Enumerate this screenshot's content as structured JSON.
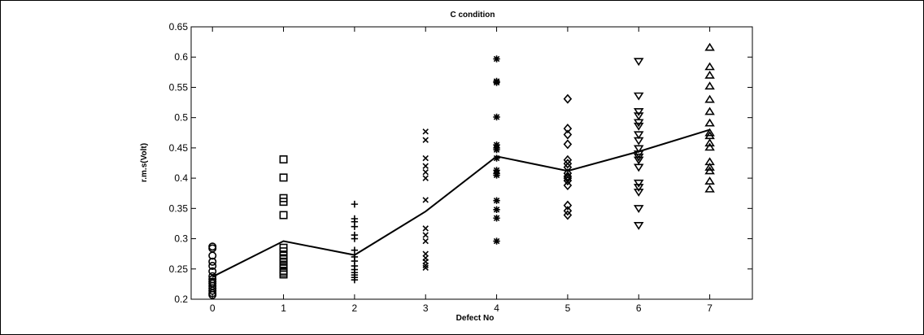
{
  "chart_data": {
    "type": "scatter",
    "title": "C condition",
    "xlabel": "Defect No",
    "ylabel": "r.m.s(Volt)",
    "xlim": [
      -0.3,
      7.6
    ],
    "ylim": [
      0.2,
      0.65
    ],
    "xticks": [
      "0",
      "1",
      "2",
      "3",
      "4",
      "5",
      "6",
      "7"
    ],
    "yticks": [
      "0.2",
      "0.25",
      "0.3",
      "0.35",
      "0.4",
      "0.45",
      "0.5",
      "0.55",
      "0.6",
      "0.65"
    ],
    "grid": false,
    "marker_color": "#000000",
    "series": [
      {
        "defect": 0,
        "marker": "circle",
        "values": [
          0.287,
          0.284,
          0.272,
          0.262,
          0.255,
          0.246,
          0.238,
          0.233,
          0.229,
          0.226,
          0.222,
          0.218,
          0.214,
          0.21,
          0.207
        ]
      },
      {
        "defect": 1,
        "marker": "square",
        "values": [
          0.431,
          0.401,
          0.367,
          0.361,
          0.339,
          0.285,
          0.279,
          0.272,
          0.266,
          0.262,
          0.257,
          0.252,
          0.247,
          0.244,
          0.241
        ]
      },
      {
        "defect": 2,
        "marker": "plus",
        "values": [
          0.357,
          0.333,
          0.328,
          0.32,
          0.306,
          0.3,
          0.281,
          0.27,
          0.263,
          0.255,
          0.249,
          0.244,
          0.24,
          0.236,
          0.232
        ]
      },
      {
        "defect": 3,
        "marker": "x",
        "values": [
          0.477,
          0.463,
          0.433,
          0.42,
          0.41,
          0.4,
          0.364,
          0.317,
          0.306,
          0.296,
          0.275,
          0.268,
          0.262,
          0.256,
          0.252
        ]
      },
      {
        "defect": 4,
        "marker": "asterisk",
        "values": [
          0.597,
          0.56,
          0.558,
          0.501,
          0.455,
          0.45,
          0.447,
          0.433,
          0.413,
          0.408,
          0.405,
          0.363,
          0.348,
          0.334,
          0.296
        ]
      },
      {
        "defect": 5,
        "marker": "diamond",
        "values": [
          0.531,
          0.482,
          0.472,
          0.456,
          0.43,
          0.424,
          0.418,
          0.408,
          0.403,
          0.4,
          0.396,
          0.388,
          0.355,
          0.346,
          0.339
        ]
      },
      {
        "defect": 6,
        "marker": "triangle-down",
        "values": [
          0.593,
          0.536,
          0.51,
          0.503,
          0.492,
          0.486,
          0.472,
          0.462,
          0.449,
          0.44,
          0.435,
          0.43,
          0.418,
          0.392,
          0.385,
          0.377,
          0.35,
          0.322
        ]
      },
      {
        "defect": 7,
        "marker": "triangle-up",
        "values": [
          0.616,
          0.584,
          0.57,
          0.552,
          0.53,
          0.51,
          0.491,
          0.475,
          0.47,
          0.458,
          0.451,
          0.427,
          0.418,
          0.412,
          0.395,
          0.382
        ]
      }
    ],
    "mean_line": {
      "x": [
        0,
        1,
        2,
        3,
        4,
        5,
        6,
        7
      ],
      "y": [
        0.237,
        0.296,
        0.273,
        0.345,
        0.436,
        0.412,
        0.444,
        0.48
      ]
    }
  }
}
